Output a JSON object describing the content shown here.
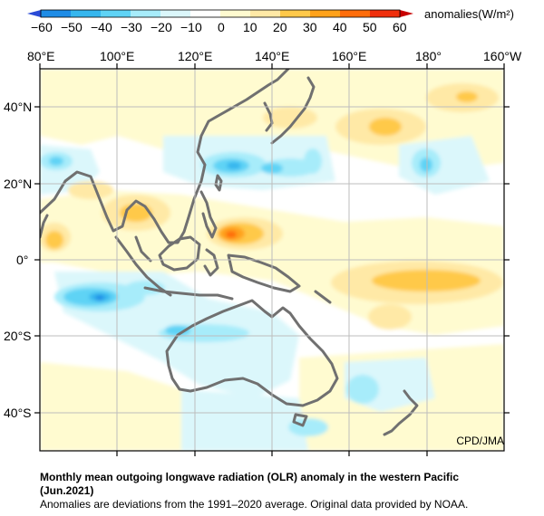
{
  "title_line1": "Monthly mean outgoing longwave radiation (OLR) anomaly in the western Pacific",
  "title_line2": "(Jun.2021)",
  "note": "Anomalies are deviations from the 1991–2020 average. Original data provided by NOAA.",
  "credit": "CPD/JMA",
  "legend": {
    "unit_label": "anomalies(W/m²)",
    "ticks": [
      "−60",
      "−50",
      "−40",
      "−30",
      "−20",
      "−10",
      "0",
      "10",
      "20",
      "30",
      "40",
      "50",
      "60"
    ],
    "colors": [
      "#2a4bd7",
      "#1e8ce6",
      "#35b6ee",
      "#5fd3f5",
      "#a7ecfa",
      "#dbf7fb",
      "#ffffff",
      "#fffbd0",
      "#ffe9a6",
      "#ffc94a",
      "#ffa21a",
      "#ff6d0a",
      "#ef2f0c",
      "#c80000"
    ]
  },
  "lon_labels": [
    "80°E",
    "100°E",
    "120°E",
    "140°E",
    "160°E",
    "180°",
    "160°W"
  ],
  "lat_labels": [
    "40°N",
    "20°N",
    "0°",
    "20°S",
    "40°S"
  ],
  "map": {
    "lon_range": [
      80,
      200
    ],
    "lat_range": [
      -50,
      50
    ]
  }
}
